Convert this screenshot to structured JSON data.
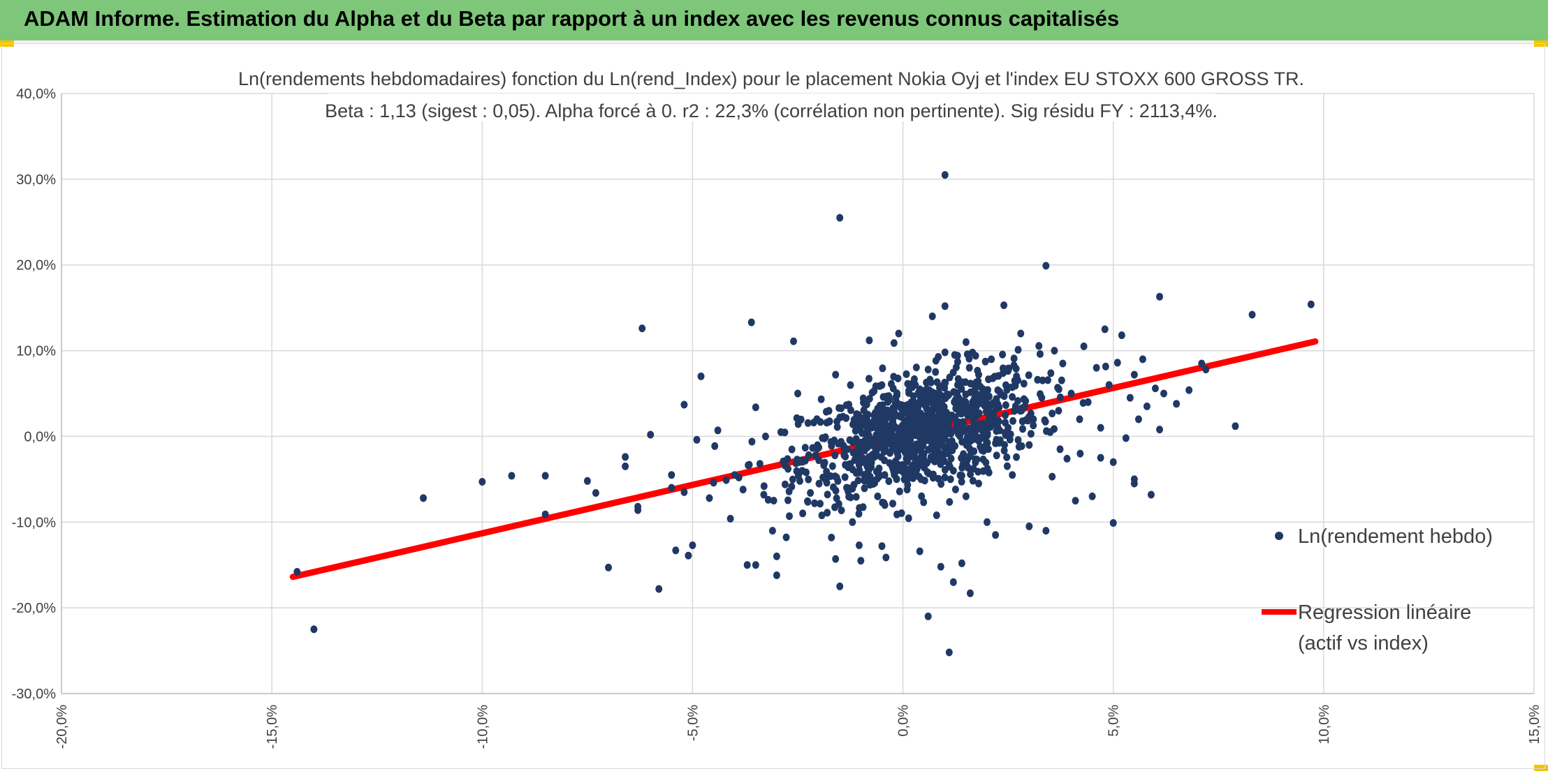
{
  "header": {
    "title": "ADAM Informe. Estimation du Alpha et du Beta par rapport à un index avec les revenus connus capitalisés",
    "bg_color": "#7dc67a",
    "corner_color": "#f5c400"
  },
  "chart_data": {
    "type": "scatter",
    "title": "Ln(rendements hebdomadaires) fonction du Ln(rend_Index) pour le placement Nokia Oyj et l'index EU STOXX 600 GROSS TR.",
    "subtitle": "Beta : 1,13 (sigest : 0,05). Alpha forcé à 0. r2 : 22,3% (corrélation non pertinente). Sig résidu FY : 2113,4%.",
    "xlabel": "",
    "ylabel": "",
    "xlim": [
      -0.2,
      0.15
    ],
    "ylim": [
      -0.3,
      0.4
    ],
    "x_ticks": [
      -0.2,
      -0.15,
      -0.1,
      -0.05,
      0.0,
      0.05,
      0.1,
      0.15
    ],
    "x_tick_labels": [
      "-20,0%",
      "-15,0%",
      "-10,0%",
      "-5,0%",
      "0,0%",
      "5,0%",
      "10,0%",
      "15,0%"
    ],
    "y_ticks": [
      0.4,
      0.3,
      0.2,
      0.1,
      0.0,
      -0.1,
      -0.2,
      -0.3
    ],
    "y_tick_labels": [
      "40,0%",
      "30,0%",
      "20,0%",
      "10,0%",
      "0,0%",
      "-10,0%",
      "-20,0%",
      "-30,0%"
    ],
    "grid": true,
    "legend_position": "right",
    "series": [
      {
        "name": "Ln(rendement hebdo)",
        "kind": "scatter",
        "color": "#203864",
        "points": [
          [
            -0.144,
            -0.158
          ],
          [
            -0.14,
            -0.225
          ],
          [
            -0.114,
            -0.072
          ],
          [
            -0.1,
            -0.053
          ],
          [
            -0.093,
            -0.046
          ],
          [
            -0.085,
            -0.046
          ],
          [
            -0.085,
            -0.091
          ],
          [
            -0.075,
            -0.052
          ],
          [
            -0.073,
            -0.066
          ],
          [
            -0.07,
            -0.153
          ],
          [
            -0.066,
            -0.024
          ],
          [
            -0.066,
            -0.035
          ],
          [
            -0.063,
            -0.082
          ],
          [
            -0.063,
            -0.086
          ],
          [
            -0.062,
            0.126
          ],
          [
            -0.06,
            0.002
          ],
          [
            -0.058,
            -0.178
          ],
          [
            -0.055,
            -0.045
          ],
          [
            -0.055,
            -0.06
          ],
          [
            -0.054,
            -0.133
          ],
          [
            -0.052,
            0.037
          ],
          [
            -0.052,
            -0.065
          ],
          [
            -0.051,
            -0.139
          ],
          [
            -0.05,
            -0.127
          ],
          [
            -0.049,
            -0.004
          ],
          [
            -0.048,
            0.07
          ],
          [
            -0.046,
            -0.072
          ],
          [
            -0.045,
            -0.054
          ],
          [
            -0.044,
            0.007
          ],
          [
            -0.042,
            -0.051
          ],
          [
            -0.041,
            -0.096
          ],
          [
            -0.04,
            -0.045
          ],
          [
            -0.039,
            -0.048
          ],
          [
            -0.038,
            -0.062
          ],
          [
            -0.037,
            -0.15
          ],
          [
            -0.036,
            0.133
          ],
          [
            -0.035,
            0.034
          ],
          [
            -0.035,
            -0.15
          ],
          [
            -0.034,
            -0.032
          ],
          [
            -0.033,
            -0.058
          ],
          [
            -0.032,
            -0.074
          ],
          [
            -0.031,
            -0.11
          ],
          [
            -0.03,
            -0.162
          ],
          [
            -0.03,
            -0.14
          ],
          [
            -0.029,
            0.005
          ],
          [
            -0.028,
            -0.034
          ],
          [
            -0.028,
            -0.056
          ],
          [
            -0.027,
            -0.093
          ],
          [
            -0.026,
            0.111
          ],
          [
            -0.025,
            0.05
          ],
          [
            -0.024,
            -0.028
          ],
          [
            -0.023,
            -0.042
          ],
          [
            -0.022,
            -0.066
          ],
          [
            -0.021,
            -0.078
          ],
          [
            -0.02,
            -0.013
          ],
          [
            -0.019,
            -0.048
          ],
          [
            -0.018,
            -0.089
          ],
          [
            -0.017,
            -0.118
          ],
          [
            -0.016,
            0.072
          ],
          [
            -0.016,
            -0.143
          ],
          [
            -0.015,
            -0.175
          ],
          [
            -0.015,
            0.255
          ],
          [
            -0.014,
            -0.022
          ],
          [
            -0.013,
            -0.036
          ],
          [
            -0.012,
            -0.061
          ],
          [
            -0.012,
            -0.1
          ],
          [
            -0.011,
            0.026
          ],
          [
            -0.01,
            -0.011
          ],
          [
            -0.01,
            -0.145
          ],
          [
            -0.009,
            -0.03
          ],
          [
            -0.008,
            0.112
          ],
          [
            -0.007,
            -0.052
          ],
          [
            -0.006,
            -0.07
          ],
          [
            -0.005,
            0.008
          ],
          [
            -0.005,
            -0.128
          ],
          [
            -0.004,
            0.022
          ],
          [
            -0.003,
            -0.018
          ],
          [
            -0.002,
            -0.045
          ],
          [
            -0.001,
            0.12
          ],
          [
            0.0,
            -0.005
          ],
          [
            0.0,
            0.036
          ],
          [
            0.001,
            -0.062
          ],
          [
            0.002,
            0.012
          ],
          [
            0.003,
            -0.031
          ],
          [
            0.004,
            0.055
          ],
          [
            0.004,
            -0.134
          ],
          [
            0.005,
            0.002
          ],
          [
            0.006,
            0.078
          ],
          [
            0.006,
            -0.21
          ],
          [
            0.007,
            -0.015
          ],
          [
            0.007,
            0.14
          ],
          [
            0.008,
            0.032
          ],
          [
            0.008,
            -0.092
          ],
          [
            0.009,
            -0.005
          ],
          [
            0.009,
            -0.152
          ],
          [
            0.01,
            0.098
          ],
          [
            0.01,
            0.305
          ],
          [
            0.01,
            0.152
          ],
          [
            0.011,
            0.018
          ],
          [
            0.011,
            -0.252
          ],
          [
            0.012,
            -0.04
          ],
          [
            0.012,
            -0.17
          ],
          [
            0.013,
            0.06
          ],
          [
            0.013,
            0.087
          ],
          [
            0.014,
            0.006
          ],
          [
            0.014,
            -0.148
          ],
          [
            0.015,
            0.11
          ],
          [
            0.015,
            -0.07
          ],
          [
            0.016,
            -0.022
          ],
          [
            0.016,
            -0.183
          ],
          [
            0.017,
            0.044
          ],
          [
            0.018,
            0.072
          ],
          [
            0.018,
            -0.055
          ],
          [
            0.019,
            0.015
          ],
          [
            0.02,
            0.028
          ],
          [
            0.02,
            -0.1
          ],
          [
            0.021,
            0.09
          ],
          [
            0.022,
            -0.008
          ],
          [
            0.022,
            -0.115
          ],
          [
            0.023,
            0.052
          ],
          [
            0.024,
            0.153
          ],
          [
            0.025,
            0.01
          ],
          [
            0.026,
            -0.045
          ],
          [
            0.027,
            0.07
          ],
          [
            0.028,
            0.12
          ],
          [
            0.029,
            0.035
          ],
          [
            0.03,
            -0.01
          ],
          [
            0.03,
            -0.105
          ],
          [
            0.031,
            0.02
          ],
          [
            0.032,
            0.066
          ],
          [
            0.033,
            0.045
          ],
          [
            0.034,
            -0.11
          ],
          [
            0.035,
            0.005
          ],
          [
            0.036,
            0.1
          ],
          [
            0.037,
            0.03
          ],
          [
            0.038,
            0.085
          ],
          [
            0.039,
            -0.026
          ],
          [
            0.04,
            0.05
          ],
          [
            0.041,
            -0.075
          ],
          [
            0.042,
            0.02
          ],
          [
            0.043,
            0.105
          ],
          [
            0.044,
            0.04
          ],
          [
            0.045,
            -0.07
          ],
          [
            0.046,
            0.08
          ],
          [
            0.047,
            0.01
          ],
          [
            0.048,
            0.125
          ],
          [
            0.049,
            0.06
          ],
          [
            0.05,
            -0.03
          ],
          [
            0.051,
            0.086
          ],
          [
            0.052,
            0.118
          ],
          [
            0.053,
            -0.002
          ],
          [
            0.054,
            0.045
          ],
          [
            0.055,
            0.072
          ],
          [
            0.055,
            -0.055
          ],
          [
            0.056,
            0.02
          ],
          [
            0.057,
            0.09
          ],
          [
            0.058,
            0.035
          ],
          [
            0.059,
            -0.068
          ],
          [
            0.06,
            0.056
          ],
          [
            0.061,
            0.008
          ],
          [
            0.034,
            0.199
          ],
          [
            0.047,
            -0.025
          ],
          [
            0.05,
            -0.101
          ],
          [
            0.055,
            -0.05
          ],
          [
            0.062,
            0.05
          ],
          [
            0.065,
            0.038
          ],
          [
            0.068,
            0.054
          ],
          [
            0.071,
            0.085
          ],
          [
            0.079,
            0.012
          ],
          [
            0.083,
            0.142
          ],
          [
            0.061,
            0.163
          ],
          [
            0.097,
            0.154
          ],
          [
            0.072,
            0.078
          ]
        ]
      },
      {
        "name": "Regression linéaire (actif vs index)",
        "name_lines": [
          "Regression linéaire",
          "(actif vs index)"
        ],
        "kind": "line",
        "color": "#ff0000",
        "x": [
          -0.145,
          0.098
        ],
        "y": [
          -0.1639,
          0.1107
        ]
      }
    ]
  }
}
